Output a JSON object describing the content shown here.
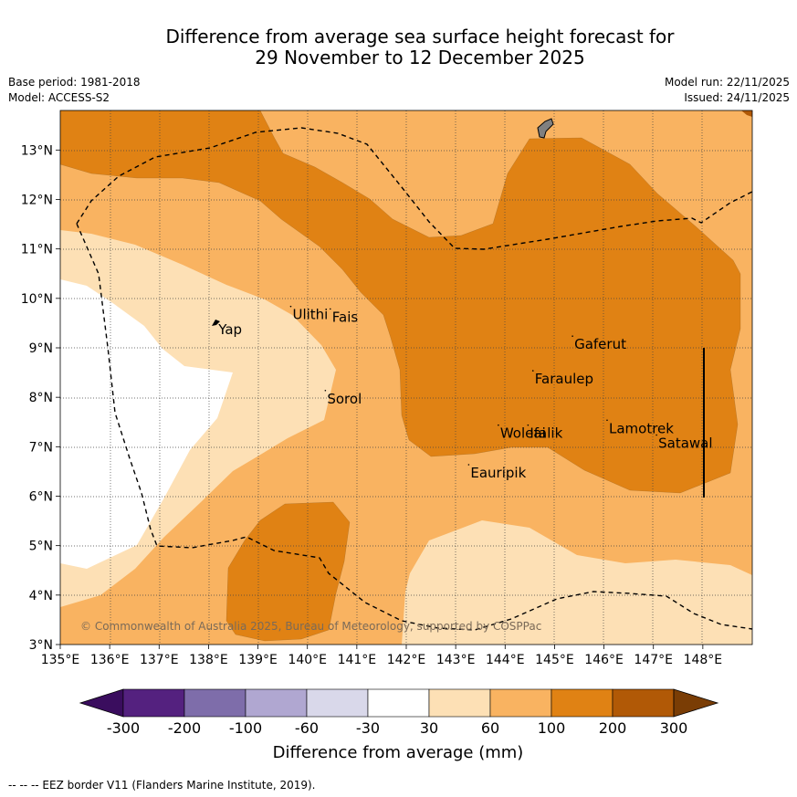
{
  "title": {
    "line1": "Difference from average sea surface height forecast for",
    "line2": "29 November to 12 December 2025"
  },
  "meta": {
    "base_period": "Base period: 1981-2018",
    "model": "Model: ACCESS-S2",
    "model_run": "Model run: 22/11/2025",
    "issued": "Issued: 24/11/2025"
  },
  "map": {
    "lon_range": [
      135,
      149
    ],
    "lat_range": [
      3,
      13.8
    ],
    "lon_ticks": [
      "135°E",
      "136°E",
      "137°E",
      "138°E",
      "139°E",
      "140°E",
      "141°E",
      "142°E",
      "143°E",
      "144°E",
      "145°E",
      "146°E",
      "147°E",
      "148°E"
    ],
    "lat_ticks": [
      "3°N",
      "4°N",
      "5°N",
      "6°N",
      "7°N",
      "8°N",
      "9°N",
      "10°N",
      "11°N",
      "12°N",
      "13°N"
    ],
    "places": [
      {
        "name": "Yap",
        "lon": 138.2,
        "lat": 9.5
      },
      {
        "name": "Ulithi",
        "lon": 139.7,
        "lat": 9.8
      },
      {
        "name": "Fais",
        "lon": 140.5,
        "lat": 9.75
      },
      {
        "name": "Sorol",
        "lon": 140.4,
        "lat": 8.1
      },
      {
        "name": "Gaferut",
        "lon": 145.4,
        "lat": 9.2
      },
      {
        "name": "Faraulep",
        "lon": 144.6,
        "lat": 8.5
      },
      {
        "name": "Woleai",
        "lon": 143.9,
        "lat": 7.4
      },
      {
        "name": "Ifalik",
        "lon": 144.5,
        "lat": 7.4
      },
      {
        "name": "Lamotrek",
        "lon": 146.1,
        "lat": 7.5
      },
      {
        "name": "Satawal",
        "lon": 147.1,
        "lat": 7.2
      },
      {
        "name": "Eauripik",
        "lon": 143.3,
        "lat": 6.6
      }
    ],
    "copyright": "© Commonwealth of Australia 2025, Bureau of Meteorology, supported by COSPPac"
  },
  "colorbar": {
    "bins": [
      {
        "color": "#54217f"
      },
      {
        "color": "#7e6daa"
      },
      {
        "color": "#b0a7d1"
      },
      {
        "color": "#d9d8ea"
      },
      {
        "color": "#ffffff"
      },
      {
        "color": "#fde0b5"
      },
      {
        "color": "#f9b361"
      },
      {
        "color": "#e08214"
      },
      {
        "color": "#b15906"
      }
    ],
    "low_extend_color": "#3a0d5e",
    "high_extend_color": "#7a3d05",
    "tick_labels": [
      "-300",
      "-200",
      "-100",
      "-60",
      "-30",
      "30",
      "60",
      "100",
      "200",
      "300"
    ],
    "label": "Difference from average (mm)"
  },
  "footer": "--  --  -- EEZ border V11 (Flanders Marine Institute, 2019)."
}
